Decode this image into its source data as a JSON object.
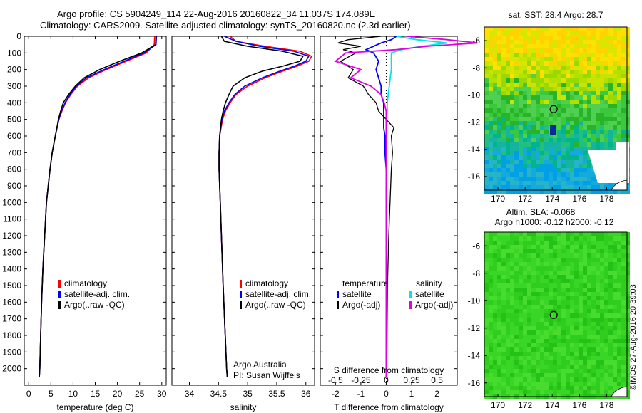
{
  "header": {
    "title_line1": "Argo profile: CS 5904249_114 22-Aug-2016 20160822_34 11.037S 174.089E",
    "title_line2": "Climatology: CARS2009. Satellite-adjusted climatology: synTS_20160820.nc (2.3d earlier)",
    "stamp": "©IMOS 27-Aug-2016 20:39:03"
  },
  "colors": {
    "climatology": "#ff0000",
    "satellite": "#0000ff",
    "argo": "#000000",
    "salinity_satellite": "#00e5e5",
    "salinity_argo": "#e000e0"
  },
  "chart_data": [
    {
      "type": "line",
      "panel": "temperature",
      "xlabel": "temperature (deg C)",
      "xlim": [
        -1,
        31
      ],
      "xticks": [
        0,
        5,
        10,
        15,
        20,
        25,
        30
      ],
      "ylim": [
        2100,
        0
      ],
      "yticks": [
        0,
        100,
        200,
        300,
        400,
        500,
        600,
        700,
        800,
        900,
        1000,
        1100,
        1200,
        1300,
        1400,
        1500,
        1600,
        1700,
        1800,
        1900,
        2000
      ],
      "depth": [
        0,
        50,
        100,
        150,
        200,
        250,
        300,
        350,
        400,
        450,
        500,
        600,
        700,
        800,
        900,
        1000,
        1200,
        1400,
        1600,
        1800,
        2000,
        2050
      ],
      "legend": [
        "climatology",
        "satellite-adj. clim.",
        "Argo(..raw -QC)"
      ],
      "series": [
        {
          "name": "climatology",
          "values": [
            28.4,
            28.3,
            26.5,
            22.0,
            17.5,
            13.5,
            11.0,
            9.5,
            8.3,
            7.5,
            6.8,
            6.0,
            5.3,
            4.8,
            4.4,
            4.0,
            3.6,
            3.2,
            2.9,
            2.7,
            2.5,
            2.4
          ]
        },
        {
          "name": "satellite-adj. clim.",
          "values": [
            28.8,
            28.7,
            26.0,
            21.5,
            17.0,
            13.0,
            10.7,
            9.3,
            8.2,
            7.4,
            6.8,
            6.0,
            5.3,
            4.8,
            4.4,
            4.0,
            3.6,
            3.2,
            2.9,
            2.7,
            2.5,
            2.4
          ]
        },
        {
          "name": "Argo(..raw -QC)",
          "values": [
            28.7,
            28.6,
            25.5,
            20.5,
            16.0,
            12.5,
            10.5,
            9.0,
            7.8,
            7.2,
            6.7,
            6.0,
            5.3,
            4.8,
            4.4,
            4.0,
            3.6,
            3.2,
            2.9,
            2.7,
            2.5,
            2.4
          ]
        }
      ]
    },
    {
      "type": "line",
      "panel": "salinity",
      "xlabel": "salinity",
      "xlim": [
        33.7,
        36.15
      ],
      "xticks": [
        34,
        34.5,
        35,
        35.5,
        36
      ],
      "xtick_labels": [
        "34",
        "34.5",
        "35",
        "35.5",
        "36"
      ],
      "ylim": [
        2100,
        0
      ],
      "depth": [
        0,
        30,
        60,
        90,
        120,
        150,
        180,
        210,
        250,
        300,
        350,
        400,
        450,
        500,
        600,
        700,
        800,
        1000,
        1200,
        1500,
        2000,
        2050
      ],
      "legend": [
        "climatology",
        "satellite-adj. clim.",
        "Argo(..raw -QC)"
      ],
      "annotation": [
        "Argo Australia",
        "PI: Susan Wijffels"
      ],
      "series": [
        {
          "name": "climatology",
          "values": [
            34.7,
            34.8,
            35.3,
            35.9,
            36.1,
            36.05,
            35.85,
            35.6,
            35.3,
            35.0,
            34.8,
            34.7,
            34.62,
            34.57,
            34.52,
            34.51,
            34.51,
            34.53,
            34.55,
            34.58,
            34.64,
            34.65
          ]
        },
        {
          "name": "satellite-adj. clim.",
          "values": [
            34.6,
            34.8,
            35.2,
            35.8,
            36.05,
            36.0,
            35.8,
            35.55,
            35.25,
            34.95,
            34.78,
            34.68,
            34.6,
            34.56,
            34.52,
            34.51,
            34.51,
            34.53,
            34.55,
            34.58,
            34.64,
            34.65
          ]
        },
        {
          "name": "Argo(..raw -QC)",
          "values": [
            34.55,
            34.6,
            35.0,
            35.6,
            35.95,
            35.9,
            35.6,
            35.25,
            34.95,
            34.75,
            34.68,
            34.62,
            34.58,
            34.55,
            34.52,
            34.51,
            34.51,
            34.53,
            34.55,
            34.58,
            34.64,
            34.65
          ]
        }
      ]
    },
    {
      "type": "line",
      "panel": "difference",
      "xlabel_top": "S difference from climatology",
      "xlabel": "T difference from climatology",
      "xlim": [
        -2.6,
        2.8
      ],
      "xticks_T": [
        -2,
        -1,
        0,
        1,
        2
      ],
      "xticks_S": [
        -0.5,
        -0.25,
        0,
        0.25,
        0.5
      ],
      "xtick_labels_S": [
        "-0.5",
        "-0.25",
        "0",
        "0.25",
        "0.5"
      ],
      "ylim": [
        2100,
        0
      ],
      "legend": {
        "temperature_header": "temperature",
        "salinity_header": "salinity",
        "items": [
          "satellite",
          "Argo(-adj)",
          "satellite",
          "Argo(-adj)"
        ]
      },
      "depth": [
        0,
        20,
        40,
        60,
        80,
        100,
        150,
        200,
        250,
        300,
        350,
        400,
        450,
        500,
        550,
        600,
        700,
        800,
        1000,
        1200,
        1500,
        2000,
        2050
      ],
      "series": [
        {
          "name": "T satellite",
          "values": [
            0.4,
            0.2,
            -0.2,
            -0.5,
            -0.8,
            -0.5,
            -0.3,
            -0.4,
            -0.3,
            -0.2,
            -0.2,
            -0.1,
            -0.1,
            -0.1,
            -0.1,
            -0.05,
            -0.05,
            0,
            0,
            0,
            0,
            0,
            0
          ]
        },
        {
          "name": "T Argo(-adj)",
          "values": [
            -0.2,
            -1.5,
            -1.9,
            -1.0,
            -1.7,
            -1.2,
            -1.8,
            -1.3,
            -1.5,
            -0.9,
            -0.7,
            -0.4,
            -0.3,
            0.0,
            0.3,
            0.2,
            0.25,
            0.2,
            0.15,
            0.1,
            0.05,
            0.02,
            0
          ]
        },
        {
          "name": "S satellite",
          "values": [
            0.1,
            0.3,
            0.6,
            0.35,
            0.15,
            0.05,
            0.05,
            0.05,
            0.04,
            0.03,
            0.02,
            0.01,
            0.01,
            0,
            0,
            0,
            0,
            0,
            0,
            0,
            0,
            0,
            0
          ]
        },
        {
          "name": "S Argo(-adj)",
          "values": [
            0.2,
            0.6,
            0.9,
            0.4,
            0.1,
            -0.4,
            -0.5,
            -0.25,
            -0.35,
            -0.15,
            -0.05,
            -0.02,
            0,
            0,
            0,
            0,
            0,
            0,
            0,
            0,
            0,
            0,
            0
          ]
        }
      ]
    },
    {
      "type": "heatmap",
      "panel": "map-sst",
      "title": "sat. SST: 28.4  Argo: 28.7",
      "xlim": [
        169,
        179.5
      ],
      "ylim": [
        -17,
        -5
      ],
      "xticks": [
        170,
        172,
        174,
        176,
        178
      ],
      "yticks": [
        -6,
        -8,
        -10,
        -12,
        -14,
        -16
      ],
      "marker": {
        "lon": 174.1,
        "lat": -11.04
      }
    },
    {
      "type": "heatmap",
      "panel": "map-sla",
      "title_line1": "Altim. SLA: -0.068",
      "title_line2": "Argo h1000: -0.12  h2000: -0.12",
      "xlim": [
        169,
        179.5
      ],
      "ylim": [
        -17,
        -5
      ],
      "xticks": [
        170,
        172,
        174,
        176,
        178
      ],
      "yticks": [
        -6,
        -8,
        -10,
        -12,
        -14,
        -16
      ],
      "marker": {
        "lon": 174.1,
        "lat": -11.04
      }
    }
  ]
}
